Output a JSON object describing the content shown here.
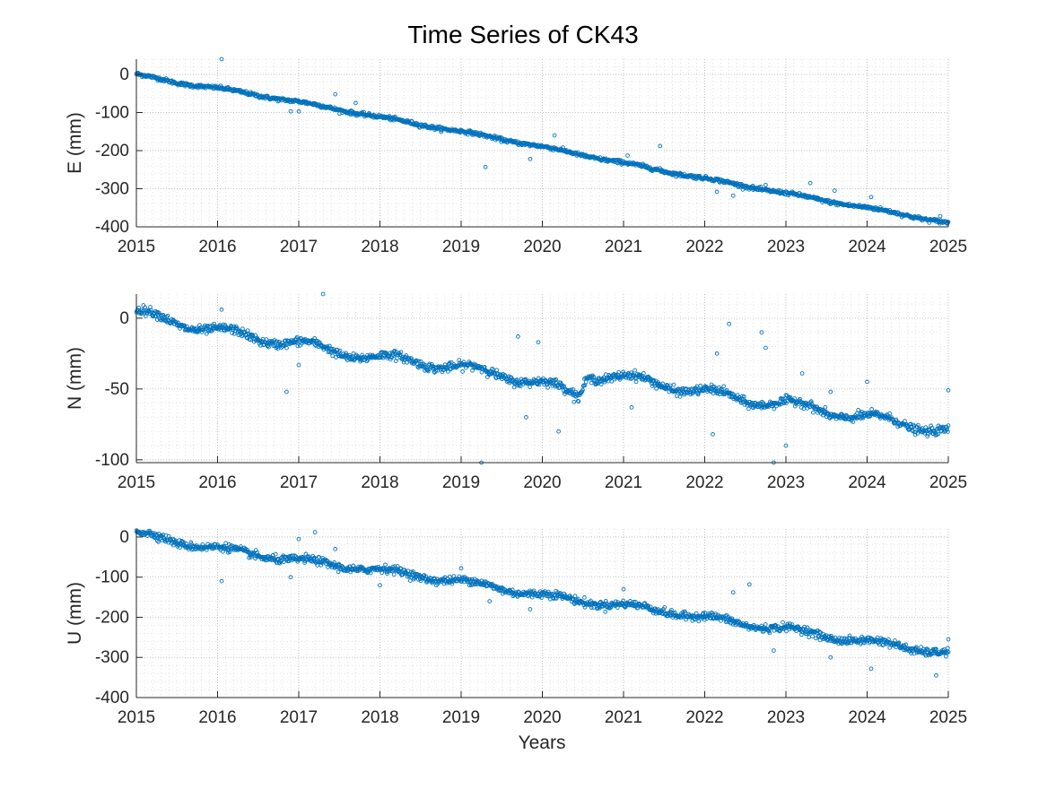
{
  "title": "Time Series of CK43",
  "colors": {
    "marker": "#0072BD",
    "axis": "#262626",
    "grid": "#b0b0b0",
    "minor_grid": "#cfcfcf"
  },
  "chart_data": {
    "type": "scatter",
    "title": "Time Series of CK43",
    "xlabel": "Years",
    "xlim": [
      2015,
      2025
    ],
    "x_ticks": [
      "2015",
      "2016",
      "2017",
      "2018",
      "2019",
      "2020",
      "2021",
      "2022",
      "2023",
      "2024",
      "2025"
    ],
    "grid": "on (major and minor, dotted)",
    "marker": "open circle",
    "panels": [
      {
        "ylabel": "E (mm)",
        "ylim": [
          -400,
          40
        ],
        "y_ticks": [
          "0",
          "-100",
          "-200",
          "-300",
          "-400"
        ],
        "trend": [
          [
            2015.0,
            0
          ],
          [
            2015.5,
            -22
          ],
          [
            2016.0,
            -36
          ],
          [
            2016.5,
            -55
          ],
          [
            2017.0,
            -72
          ],
          [
            2017.5,
            -93
          ],
          [
            2018.0,
            -112
          ],
          [
            2018.5,
            -132
          ],
          [
            2019.0,
            -150
          ],
          [
            2019.5,
            -170
          ],
          [
            2020.0,
            -190
          ],
          [
            2020.5,
            -212
          ],
          [
            2021.0,
            -232
          ],
          [
            2021.5,
            -254
          ],
          [
            2022.0,
            -273
          ],
          [
            2022.5,
            -293
          ],
          [
            2023.0,
            -312
          ],
          [
            2023.5,
            -332
          ],
          [
            2024.0,
            -350
          ],
          [
            2024.5,
            -370
          ],
          [
            2025.0,
            -390
          ]
        ],
        "outliers": [
          [
            2016.05,
            43
          ],
          [
            2016.9,
            -97
          ],
          [
            2017.0,
            -97
          ],
          [
            2017.45,
            -52
          ],
          [
            2017.7,
            -75
          ],
          [
            2019.3,
            -243
          ],
          [
            2019.85,
            -222
          ],
          [
            2020.15,
            -160
          ],
          [
            2021.05,
            -213
          ],
          [
            2021.45,
            -188
          ],
          [
            2022.15,
            -308
          ],
          [
            2022.35,
            -318
          ],
          [
            2022.75,
            -290
          ],
          [
            2023.3,
            -285
          ],
          [
            2023.6,
            -305
          ],
          [
            2024.05,
            -322
          ],
          [
            2024.9,
            -372
          ]
        ],
        "scatter_mm": 4,
        "seasonal_mm": 2
      },
      {
        "ylabel": "N (mm)",
        "ylim": [
          -102,
          17
        ],
        "y_ticks": [
          "0",
          "-50",
          "-100"
        ],
        "trend": [
          [
            2015.0,
            4
          ],
          [
            2015.5,
            -3
          ],
          [
            2016.0,
            -9
          ],
          [
            2016.5,
            -14
          ],
          [
            2017.0,
            -18
          ],
          [
            2017.5,
            -24
          ],
          [
            2018.0,
            -28
          ],
          [
            2018.5,
            -31
          ],
          [
            2019.0,
            -35
          ],
          [
            2019.5,
            -40
          ],
          [
            2020.0,
            -46
          ],
          [
            2020.45,
            -55
          ],
          [
            2020.55,
            -40
          ],
          [
            2021.0,
            -42
          ],
          [
            2021.5,
            -47
          ],
          [
            2022.0,
            -52
          ],
          [
            2022.5,
            -58
          ],
          [
            2023.0,
            -60
          ],
          [
            2023.5,
            -66
          ],
          [
            2024.0,
            -70
          ],
          [
            2024.5,
            -75
          ],
          [
            2025.0,
            -80
          ]
        ],
        "outliers": [
          [
            2016.05,
            6
          ],
          [
            2016.85,
            -52
          ],
          [
            2017.0,
            -33
          ],
          [
            2017.3,
            17
          ],
          [
            2019.25,
            -102
          ],
          [
            2019.7,
            -13
          ],
          [
            2019.8,
            -70
          ],
          [
            2019.95,
            -17
          ],
          [
            2020.2,
            -80
          ],
          [
            2021.1,
            -63
          ],
          [
            2022.1,
            -82
          ],
          [
            2022.15,
            -25
          ],
          [
            2022.3,
            -4
          ],
          [
            2022.7,
            -10
          ],
          [
            2022.75,
            -21
          ],
          [
            2022.85,
            -102
          ],
          [
            2023.0,
            -90
          ],
          [
            2023.2,
            -39
          ],
          [
            2023.55,
            -52
          ],
          [
            2024.0,
            -45
          ],
          [
            2025.0,
            -51
          ]
        ],
        "scatter_mm": 2.5,
        "seasonal_mm": 3
      },
      {
        "ylabel": "U (mm)",
        "ylim": [
          -400,
          20
        ],
        "y_ticks": [
          "0",
          "-100",
          "-200",
          "-300",
          "-400"
        ],
        "trend": [
          [
            2015.0,
            10
          ],
          [
            2015.5,
            -12
          ],
          [
            2016.0,
            -28
          ],
          [
            2016.5,
            -45
          ],
          [
            2017.0,
            -58
          ],
          [
            2017.5,
            -72
          ],
          [
            2018.0,
            -82
          ],
          [
            2018.5,
            -98
          ],
          [
            2019.0,
            -110
          ],
          [
            2019.5,
            -128
          ],
          [
            2020.0,
            -145
          ],
          [
            2020.5,
            -160
          ],
          [
            2021.0,
            -170
          ],
          [
            2021.5,
            -185
          ],
          [
            2022.0,
            -200
          ],
          [
            2022.5,
            -218
          ],
          [
            2023.0,
            -228
          ],
          [
            2023.5,
            -248
          ],
          [
            2024.0,
            -260
          ],
          [
            2024.5,
            -275
          ],
          [
            2025.0,
            -290
          ]
        ],
        "outliers": [
          [
            2016.05,
            -110
          ],
          [
            2016.9,
            -100
          ],
          [
            2017.0,
            -5
          ],
          [
            2017.2,
            12
          ],
          [
            2017.45,
            -30
          ],
          [
            2018.0,
            -120
          ],
          [
            2019.0,
            -78
          ],
          [
            2019.35,
            -160
          ],
          [
            2019.85,
            -180
          ],
          [
            2021.0,
            -130
          ],
          [
            2022.35,
            -138
          ],
          [
            2022.55,
            -118
          ],
          [
            2022.85,
            -283
          ],
          [
            2023.55,
            -300
          ],
          [
            2024.05,
            -328
          ],
          [
            2024.85,
            -345
          ],
          [
            2025.0,
            -255
          ]
        ],
        "scatter_mm": 8,
        "seasonal_mm": 6
      }
    ]
  }
}
